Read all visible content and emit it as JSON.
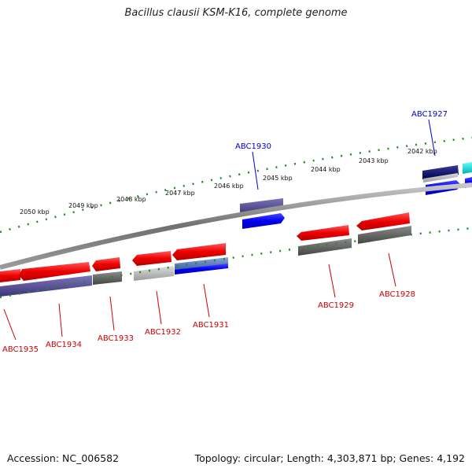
{
  "title": "Bacillus clausii KSM-K16, complete genome",
  "footer": {
    "accession": "Accession: NC_006582",
    "topology": "Topology: circular; Length: 4,303,871 bp; Genes: 4,192"
  },
  "colors": {
    "forward_cds": "#ff0000",
    "reverse_cds": "#0000ff",
    "other_gene": "#555555",
    "backbone": "#888888",
    "ticks": "#228b22",
    "label_red": "#cc0000",
    "label_blue": "#0000cc"
  },
  "ruler_labels": [
    "2050 kbp",
    "2049 kbp",
    "2048 kbp",
    "2047 kbp",
    "2046 kbp",
    "2045 kbp",
    "2044 kbp",
    "2043 kbp",
    "2042 kbp"
  ],
  "gene_labels": {
    "ABC1927": "ABC1927",
    "ABC1928": "ABC1928",
    "ABC1929": "ABC1929",
    "ABC1930": "ABC1930",
    "ABC1931": "ABC1931",
    "ABC1932": "ABC1932",
    "ABC1933": "ABC1933",
    "ABC1934": "ABC1934",
    "ABC1935": "ABC1935"
  }
}
